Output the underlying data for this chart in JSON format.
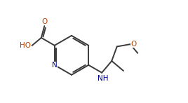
{
  "bg_color": "#ffffff",
  "bond_color": "#3a3a3a",
  "N_color": "#00008b",
  "O_color": "#b84400",
  "line_width": 1.4,
  "font_size": 7.5,
  "figsize": [
    2.68,
    1.47
  ],
  "dpi": 100,
  "xlim": [
    0.0,
    10.0
  ],
  "ylim": [
    0.5,
    5.5
  ]
}
